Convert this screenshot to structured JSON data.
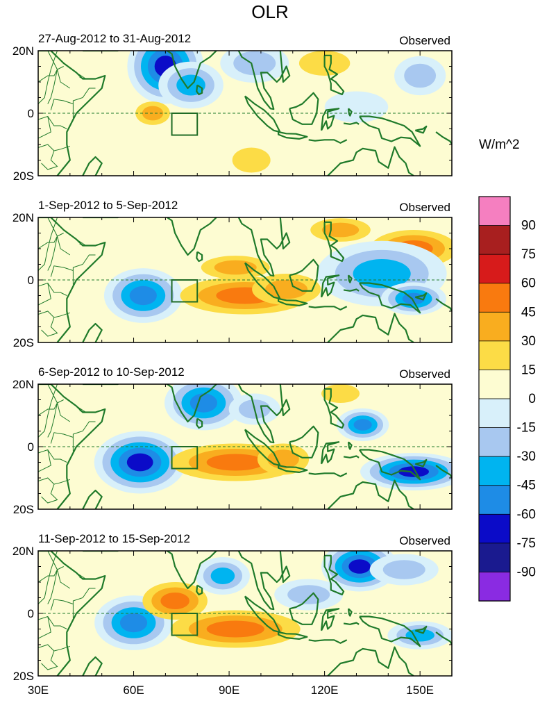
{
  "title": "OLR",
  "units": "W/m^2",
  "panel_label_right": "Observed",
  "colors": {
    "coast": "#1f7a2a",
    "levels": [
      "#8a2be2",
      "#1a1a8f",
      "#0b0bc8",
      "#1e8ce6",
      "#00b4f0",
      "#a8c8f0",
      "#d8f0fa",
      "#fdfcd2",
      "#fcdc46",
      "#f9ad1f",
      "#f97a0f",
      "#d71b1b",
      "#a81f1f",
      "#f57fc0"
    ]
  },
  "colorbar": {
    "labels": [
      "-90",
      "-75",
      "-60",
      "-45",
      "-30",
      "-15",
      "0",
      "15",
      "30",
      "45",
      "60",
      "75",
      "90"
    ]
  },
  "chart_data": [
    {
      "type": "heatmap",
      "title": "27-Aug-2012 to 31-Aug-2012",
      "xlabel": "",
      "ylabel": "",
      "xlim": [
        30,
        160
      ],
      "ylim": [
        -20,
        20
      ],
      "x_ticks": [
        "30E",
        "60E",
        "90E",
        "120E",
        "150E"
      ],
      "y_ticks": [
        "20N",
        "0",
        "20S"
      ],
      "box": {
        "lon": [
          72,
          80
        ],
        "lat": [
          -7,
          0
        ]
      },
      "anomalies": [
        {
          "lon": 70,
          "lat": 15,
          "value": -75,
          "r": [
            5,
            6
          ]
        },
        {
          "lon": 78,
          "lat": 9,
          "value": -45,
          "r": [
            6,
            5
          ]
        },
        {
          "lon": 98,
          "lat": 16,
          "value": -30,
          "r": [
            8,
            5
          ]
        },
        {
          "lon": 66,
          "lat": 0,
          "value": 30,
          "r": [
            4,
            3
          ]
        },
        {
          "lon": 120,
          "lat": 16,
          "value": 15,
          "r": [
            8,
            4
          ]
        },
        {
          "lon": 97,
          "lat": -15,
          "value": 15,
          "r": [
            6,
            4
          ]
        },
        {
          "lon": 150,
          "lat": 12,
          "value": -30,
          "r": [
            6,
            5
          ]
        },
        {
          "lon": 130,
          "lat": 2,
          "value": -15,
          "r": [
            10,
            5
          ]
        }
      ]
    },
    {
      "type": "heatmap",
      "title": "1-Sep-2012 to 5-Sep-2012",
      "xlabel": "",
      "ylabel": "",
      "xlim": [
        30,
        160
      ],
      "ylim": [
        -20,
        20
      ],
      "x_ticks": [
        "30E",
        "60E",
        "90E",
        "120E",
        "150E"
      ],
      "y_ticks": [
        "20N",
        "0",
        "20S"
      ],
      "box": {
        "lon": [
          72,
          80
        ],
        "lat": [
          -7,
          0
        ]
      },
      "anomalies": [
        {
          "lon": 63,
          "lat": -5,
          "value": -60,
          "r": [
            6,
            5
          ]
        },
        {
          "lon": 95,
          "lat": -5,
          "value": 45,
          "r": [
            12,
            4
          ]
        },
        {
          "lon": 92,
          "lat": 4,
          "value": 30,
          "r": [
            8,
            3
          ]
        },
        {
          "lon": 108,
          "lat": -3,
          "value": 30,
          "r": [
            8,
            4
          ]
        },
        {
          "lon": 148,
          "lat": 10,
          "value": 45,
          "r": [
            8,
            4
          ]
        },
        {
          "lon": 125,
          "lat": 16,
          "value": 30,
          "r": [
            7,
            3
          ]
        },
        {
          "lon": 138,
          "lat": 2,
          "value": -45,
          "r": [
            12,
            7
          ]
        },
        {
          "lon": 148,
          "lat": -6,
          "value": -60,
          "r": [
            5,
            3
          ]
        }
      ]
    },
    {
      "type": "heatmap",
      "title": "6-Sep-2012 to 10-Sep-2012",
      "xlabel": "",
      "ylabel": "",
      "xlim": [
        30,
        160
      ],
      "ylim": [
        -20,
        20
      ],
      "x_ticks": [
        "30E",
        "60E",
        "90E",
        "120E",
        "150E"
      ],
      "y_ticks": [
        "20N",
        "0",
        "20S"
      ],
      "box": {
        "lon": [
          72,
          80
        ],
        "lat": [
          -7,
          0
        ]
      },
      "anomalies": [
        {
          "lon": 62,
          "lat": -5,
          "value": -75,
          "r": [
            6,
            5
          ]
        },
        {
          "lon": 82,
          "lat": 14,
          "value": -60,
          "r": [
            6,
            5
          ]
        },
        {
          "lon": 92,
          "lat": -5,
          "value": 45,
          "r": [
            12,
            4
          ]
        },
        {
          "lon": 107,
          "lat": -4,
          "value": 30,
          "r": [
            6,
            4
          ]
        },
        {
          "lon": 132,
          "lat": 7,
          "value": -60,
          "r": [
            4,
            3
          ]
        },
        {
          "lon": 148,
          "lat": -8,
          "value": -75,
          "r": [
            7,
            3
          ]
        },
        {
          "lon": 125,
          "lat": 17,
          "value": 15,
          "r": [
            6,
            3
          ]
        },
        {
          "lon": 98,
          "lat": 12,
          "value": -30,
          "r": [
            6,
            4
          ]
        }
      ]
    },
    {
      "type": "heatmap",
      "title": "11-Sep-2012 to 15-Sep-2012",
      "xlabel": "",
      "ylabel": "",
      "xlim": [
        30,
        160
      ],
      "ylim": [
        -20,
        20
      ],
      "x_ticks": [
        "30E",
        "60E",
        "90E",
        "120E",
        "150E"
      ],
      "y_ticks": [
        "20N",
        "0",
        "20S"
      ],
      "box": {
        "lon": [
          72,
          80
        ],
        "lat": [
          -7,
          0
        ]
      },
      "anomalies": [
        {
          "lon": 60,
          "lat": -3,
          "value": -60,
          "r": [
            6,
            5
          ]
        },
        {
          "lon": 73,
          "lat": 4,
          "value": 45,
          "r": [
            6,
            4
          ]
        },
        {
          "lon": 92,
          "lat": -5,
          "value": 45,
          "r": [
            12,
            4
          ]
        },
        {
          "lon": 131,
          "lat": 15,
          "value": -75,
          "r": [
            5,
            4
          ]
        },
        {
          "lon": 88,
          "lat": 12,
          "value": -45,
          "r": [
            5,
            4
          ]
        },
        {
          "lon": 150,
          "lat": -7,
          "value": -45,
          "r": [
            6,
            3
          ]
        },
        {
          "lon": 115,
          "lat": 6,
          "value": -30,
          "r": [
            8,
            4
          ]
        },
        {
          "lon": 145,
          "lat": 14,
          "value": -30,
          "r": [
            8,
            4
          ]
        }
      ]
    }
  ]
}
